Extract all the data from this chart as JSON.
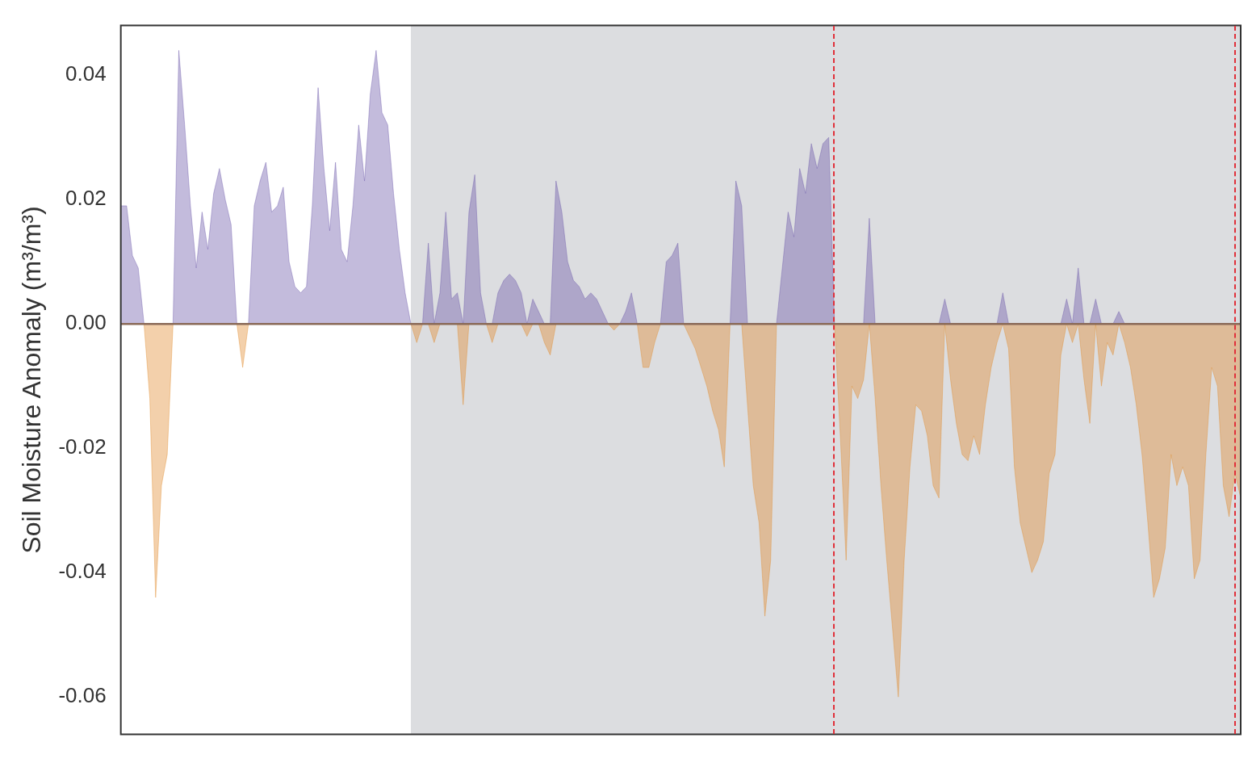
{
  "chart_data": {
    "type": "area",
    "ylabel": "Soil Moisture Anomaly (m³/m³)",
    "categories": [
      null,
      null,
      null,
      null,
      null,
      null,
      null,
      null,
      null,
      null,
      null,
      null,
      null,
      null,
      null,
      null,
      null,
      null,
      null,
      null,
      null,
      null,
      null,
      null,
      null,
      null,
      null,
      null,
      null,
      null,
      null,
      null,
      null,
      null,
      null,
      null,
      null,
      null,
      null,
      null,
      null,
      null,
      null,
      null,
      null,
      null,
      null,
      null,
      null,
      null,
      null,
      null,
      null,
      null,
      null,
      null,
      null,
      null,
      null,
      null,
      null,
      null,
      null,
      null,
      null,
      null,
      null,
      null,
      null,
      null,
      null,
      null,
      null,
      null,
      null,
      null,
      null,
      null,
      null,
      null,
      null,
      null,
      null,
      null,
      null,
      null,
      null,
      null,
      null,
      null,
      null,
      null,
      null,
      null,
      null,
      null,
      null,
      null,
      null,
      null,
      null,
      null,
      null,
      null,
      null,
      null,
      null,
      null,
      null,
      null,
      null,
      null,
      null,
      null,
      null,
      null,
      null,
      null,
      null,
      null,
      null,
      null,
      null,
      null,
      null,
      null,
      null,
      null,
      null,
      null,
      null,
      null,
      null,
      null,
      null,
      null,
      null,
      null,
      null,
      null,
      null,
      null,
      null,
      null,
      null,
      null,
      null,
      null,
      null,
      null,
      null,
      null,
      null,
      null,
      null,
      null,
      null,
      null,
      null,
      null,
      null,
      null,
      null,
      null,
      null,
      null,
      null,
      null,
      null,
      null,
      null,
      null,
      null,
      null,
      null,
      null,
      null,
      null,
      null,
      null,
      null,
      null,
      null,
      null,
      null,
      null,
      null,
      null,
      null,
      null,
      null,
      null,
      null,
      null
    ],
    "series": [
      {
        "color": "#6a55a8",
        "values": [
          0.019,
          0.019,
          0.011,
          0.009,
          0,
          0,
          0,
          0,
          0,
          0,
          0.044,
          0.032,
          0.019,
          0.009,
          0.018,
          0.012,
          0.021,
          0.025,
          0.02,
          0.016,
          0,
          0,
          0,
          0.019,
          0.023,
          0.026,
          0.018,
          0.019,
          0.022,
          0.01,
          0.006,
          0.005,
          0.006,
          0.019,
          0.038,
          0.025,
          0.015,
          0.026,
          0.012,
          0.01,
          0.019,
          0.032,
          0.023,
          0.037,
          0.044,
          0.034,
          0.032,
          0.021,
          0.012,
          0.005,
          0,
          0,
          0,
          0.013,
          0,
          0.005,
          0.018,
          0.004,
          0.005,
          0,
          0.018,
          0.024,
          0.005,
          0,
          0,
          0.005,
          0.007,
          0.008,
          0.007,
          0.005,
          0,
          0.004,
          0.002,
          0,
          0,
          0.023,
          0.018,
          0.01,
          0.007,
          0.006,
          0.004,
          0.005,
          0.004,
          0.002,
          0,
          0,
          0,
          0.002,
          0.005,
          0,
          0,
          0,
          0,
          0,
          0.01,
          0.011,
          0.013,
          0,
          0,
          0,
          0,
          0,
          0,
          0,
          0,
          0,
          0.023,
          0.019,
          0,
          0,
          0,
          0,
          0,
          0,
          0.009,
          0.018,
          0.014,
          0.025,
          0.021,
          0.029,
          0.025,
          0.029,
          0.03,
          0,
          0,
          0,
          0,
          0,
          0,
          0.017,
          0,
          0,
          0,
          0,
          0,
          0,
          0,
          0,
          0,
          0,
          0,
          0,
          0.004,
          0,
          0,
          0,
          0,
          0,
          0,
          0,
          0,
          0,
          0.005,
          0,
          0,
          0,
          0,
          0,
          0,
          0,
          0,
          0,
          0,
          0.004,
          0,
          0.009,
          0,
          0,
          0.004,
          0,
          0,
          0,
          0.002,
          0,
          0,
          0,
          0,
          0,
          0,
          0,
          0,
          0,
          0,
          0,
          0,
          0,
          0,
          0,
          0,
          0,
          0,
          0,
          0,
          0
        ]
      },
      {
        "color": "#e08a2c",
        "values": [
          0,
          0,
          0,
          0,
          0,
          -0.012,
          -0.044,
          -0.026,
          -0.021,
          0,
          0,
          0,
          0,
          0,
          0,
          0,
          0,
          0,
          0,
          0,
          0,
          -0.007,
          0,
          0,
          0,
          0,
          0,
          0,
          0,
          0,
          0,
          0,
          0,
          0,
          0,
          0,
          0,
          0,
          0,
          0,
          0,
          0,
          0,
          0,
          0,
          0,
          0,
          0,
          0,
          0,
          0,
          -0.003,
          0,
          0,
          -0.003,
          0,
          0,
          0,
          0,
          -0.013,
          0,
          0,
          0,
          0,
          -0.003,
          0,
          0,
          0,
          0,
          0,
          -0.002,
          0,
          0,
          -0.003,
          -0.005,
          0,
          0,
          0,
          0,
          0,
          0,
          0,
          0,
          0,
          0,
          -0.001,
          0,
          0,
          0,
          0,
          -0.007,
          -0.007,
          -0.003,
          0,
          0,
          0,
          0,
          0,
          -0.002,
          -0.004,
          -0.007,
          -0.01,
          -0.014,
          -0.017,
          -0.023,
          0,
          0,
          0,
          -0.013,
          -0.026,
          -0.032,
          -0.047,
          -0.038,
          0,
          0,
          0,
          0,
          0,
          0,
          0,
          0,
          0,
          0,
          0,
          -0.018,
          -0.038,
          -0.01,
          -0.012,
          -0.009,
          0,
          -0.012,
          -0.026,
          -0.038,
          -0.049,
          -0.06,
          -0.038,
          -0.023,
          -0.013,
          -0.014,
          -0.018,
          -0.026,
          -0.028,
          0,
          -0.009,
          -0.016,
          -0.021,
          -0.022,
          -0.018,
          -0.021,
          -0.013,
          -0.007,
          -0.003,
          0,
          -0.004,
          -0.023,
          -0.032,
          -0.036,
          -0.04,
          -0.038,
          -0.035,
          -0.024,
          -0.021,
          -0.005,
          0,
          -0.003,
          0,
          -0.009,
          -0.016,
          0,
          -0.01,
          -0.003,
          -0.005,
          0,
          -0.003,
          -0.007,
          -0.013,
          -0.021,
          -0.032,
          -0.044,
          -0.041,
          -0.036,
          -0.021,
          -0.026,
          -0.023,
          -0.026,
          -0.041,
          -0.038,
          -0.021,
          -0.007,
          -0.01,
          -0.026,
          -0.031,
          -0.024,
          -0.028
        ]
      }
    ],
    "ylim": [
      -0.066,
      0.048
    ],
    "yticks": [
      {
        "value": -0.06,
        "label": "-0.06"
      },
      {
        "value": -0.04,
        "label": "-0.04"
      },
      {
        "value": -0.02,
        "label": "-0.02"
      },
      {
        "value": 0,
        "label": "0.00"
      },
      {
        "value": 0.02,
        "label": "0.02"
      },
      {
        "value": 0.04,
        "label": "0.04"
      }
    ],
    "ref_lines": [
      {
        "axis": "y",
        "value": 0,
        "color": "#8a6a58",
        "line_style": "solid"
      }
    ],
    "tick_labels": "y",
    "grid": false,
    "legend": false,
    "marker": "none",
    "line_style": "solid"
  }
}
